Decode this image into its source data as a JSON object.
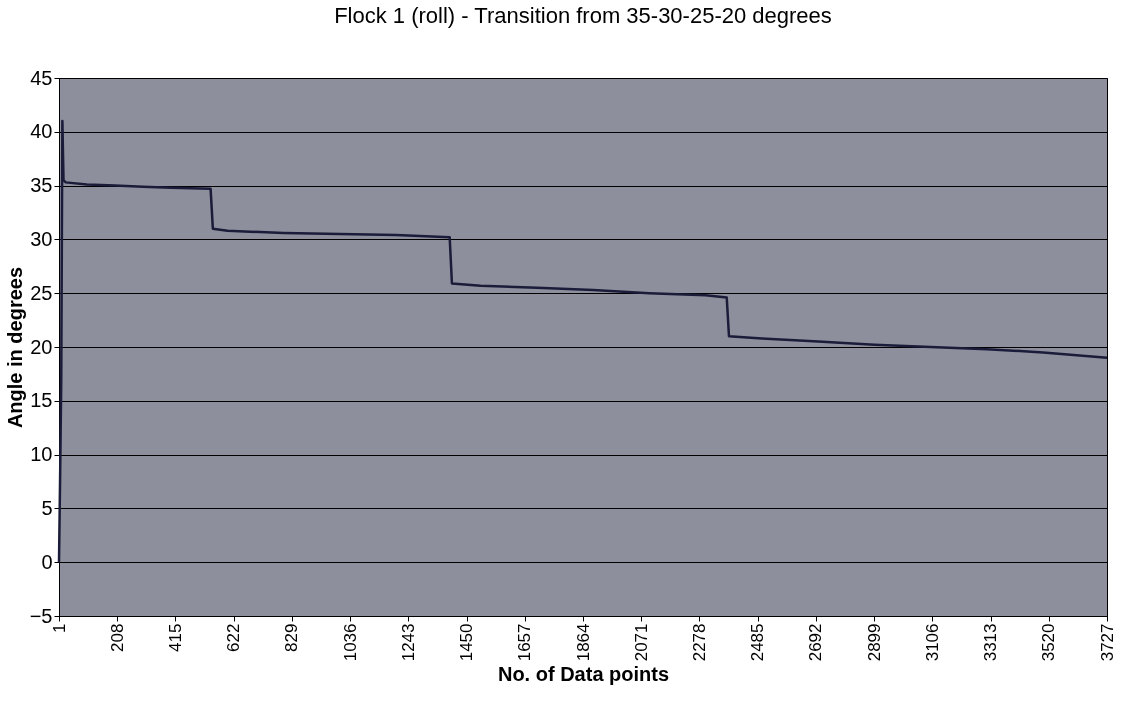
{
  "chart_data": {
    "type": "line",
    "title": "Flock 1 (roll) - Transition from 35-30-25-20 degrees",
    "xlabel": "No. of Data points",
    "ylabel": "Angle in degrees",
    "xlim": [
      1,
      3727
    ],
    "xticks": [
      1,
      208,
      415,
      622,
      829,
      1036,
      1243,
      1450,
      1657,
      1864,
      2071,
      2278,
      2485,
      2692,
      2899,
      3106,
      3313,
      3520,
      3727
    ],
    "ylim": [
      -5,
      45
    ],
    "yticks": [
      -5,
      0,
      5,
      10,
      15,
      20,
      25,
      30,
      35,
      40,
      45
    ],
    "grid": "y",
    "marker": "none",
    "line_style": "solid",
    "series": [
      {
        "color": "#1a1c3a",
        "x": [
          1,
          5,
          9,
          13,
          17,
          25,
          100,
          200,
          300,
          400,
          540,
          548,
          600,
          800,
          1000,
          1200,
          1390,
          1398,
          1500,
          1700,
          1900,
          2100,
          2300,
          2375,
          2383,
          2500,
          2700,
          2900,
          3100,
          3300,
          3500,
          3727
        ],
        "values": [
          0,
          8,
          17,
          41,
          35.5,
          35.3,
          35.1,
          35,
          34.9,
          34.8,
          34.7,
          31,
          30.8,
          30.6,
          30.5,
          30.4,
          30.2,
          25.9,
          25.7,
          25.5,
          25.3,
          25,
          24.8,
          24.6,
          21,
          20.8,
          20.5,
          20.2,
          20,
          19.8,
          19.5,
          19
        ]
      }
    ]
  }
}
